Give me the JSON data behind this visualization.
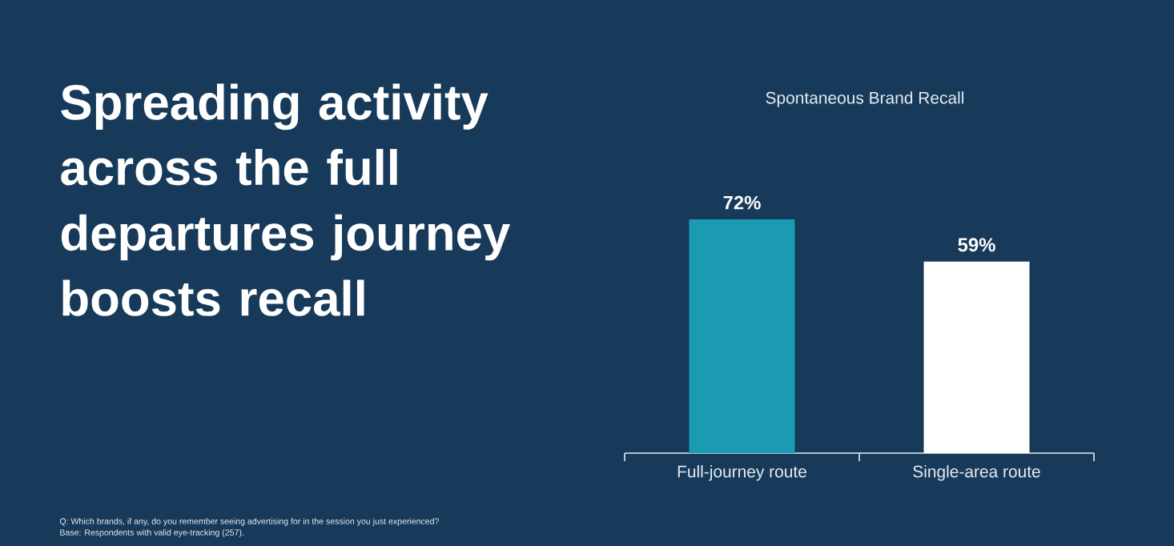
{
  "chart_data": {
    "type": "bar",
    "title": "Spreading activity across the full departures journey boosts recall",
    "subtitle": "Spontaneous Brand Recall",
    "categories": [
      "Full-journey route",
      "Single-area route"
    ],
    "values": [
      72,
      59
    ],
    "colors": [
      "#1a9bb2",
      "#ffffff"
    ],
    "value_labels": [
      "72%",
      "59%"
    ],
    "annotations": [
      "Q: Which brands, if any, do you remember seeing advertising for in the session you just experienced?",
      "Base: Respondents with valid eye-tracking (257)."
    ]
  }
}
